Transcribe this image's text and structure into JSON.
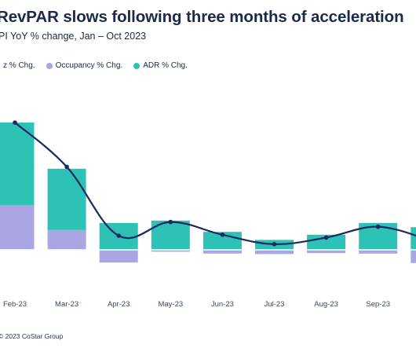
{
  "header": {
    "title": "RevPAR slows following three months of acceleration",
    "subtitle": "PI YoY % change, Jan – Oct 2023"
  },
  "legend": {
    "items": [
      {
        "label": "z % Chg.",
        "color": "#1b2a5e"
      },
      {
        "label": "Occupancy % Chg.",
        "color": "#a9a6e3"
      },
      {
        "label": "ADR % Chg.",
        "color": "#2ec1b6"
      }
    ]
  },
  "footer": {
    "text": "© 2023 CoStar Group"
  },
  "chart_data": {
    "type": "bar",
    "stacked": true,
    "categories": [
      "Feb-23",
      "Mar-23",
      "Apr-23",
      "May-23",
      "Jun-23",
      "Jul-23",
      "Aug-23",
      "Sep-23",
      ""
    ],
    "series": [
      {
        "name": "Occupancy % Chg.",
        "color": "#a9a6e3",
        "values": [
          9.5,
          4.2,
          -2.7,
          -0.4,
          -0.8,
          -0.9,
          -0.7,
          -0.8,
          -2.8
        ]
      },
      {
        "name": "ADR % Chg.",
        "color": "#2ec1b6",
        "values": [
          17.5,
          13.0,
          5.7,
          6.2,
          3.8,
          2.1,
          3.2,
          5.7,
          4.8
        ]
      },
      {
        "name": "RevPAR % Chg.",
        "color": "#1b2a5e",
        "type": "line",
        "values": [
          27.0,
          17.6,
          3.0,
          5.9,
          3.2,
          1.2,
          2.6,
          4.9,
          2.0
        ]
      }
    ],
    "ylim": [
      -5,
      32
    ],
    "grid": false,
    "legend_position": "top-left"
  }
}
